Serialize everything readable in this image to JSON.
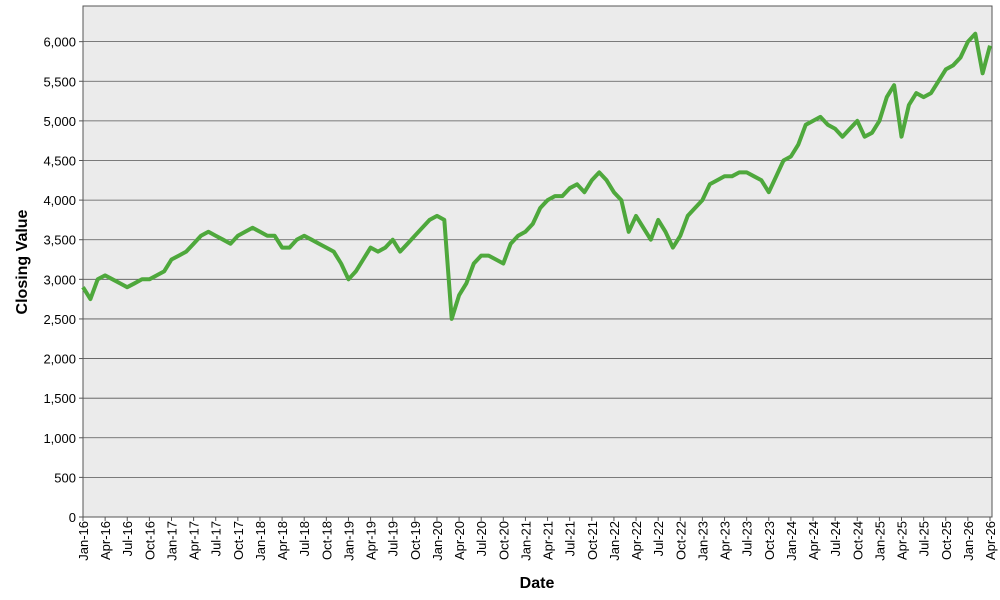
{
  "chart_data": {
    "type": "line",
    "x_label": "Date",
    "y_label": "Closing Value",
    "categories": [
      "Jan-16",
      null,
      null,
      "Apr-16",
      null,
      null,
      "Jul-16",
      null,
      null,
      "Oct-16",
      null,
      null,
      "Jan-17",
      null,
      null,
      "Apr-17",
      null,
      null,
      "Jul-17",
      null,
      null,
      "Oct-17",
      null,
      null,
      "Jan-18",
      null,
      null,
      "Apr-18",
      null,
      null,
      "Jul-18",
      null,
      null,
      "Oct-18",
      null,
      null,
      "Jan-19",
      null,
      null,
      "Apr-19",
      null,
      null,
      "Jul-19",
      null,
      null,
      "Oct-19",
      null,
      null,
      "Jan-20",
      null,
      null,
      "Apr-20",
      null,
      null,
      "Jul-20",
      null,
      null,
      "Oct-20",
      null,
      null,
      "Jan-21",
      null,
      null,
      "Apr-21",
      null,
      null,
      "Jul-21",
      null,
      null,
      "Oct-21",
      null,
      null,
      "Jan-22",
      null,
      null,
      "Apr-22",
      null,
      null,
      "Jul-22",
      null,
      null,
      "Oct-22",
      null,
      null,
      "Jan-23",
      null,
      null,
      "Apr-23",
      null,
      null,
      "Jul-23",
      null,
      null,
      "Oct-23",
      null,
      null,
      "Jan-24",
      null,
      null,
      "Apr-24",
      null,
      null,
      "Jul-24",
      null,
      null,
      "Oct-24",
      null,
      null,
      "Jan-25",
      null,
      null,
      "Apr-25",
      null,
      null,
      "Jul-25",
      null,
      null,
      "Oct-25",
      null,
      null,
      "Jan-26",
      null,
      null,
      "Apr-26"
    ],
    "series": [
      {
        "color": "#4ea83c",
        "values": [
          2900,
          2750,
          3000,
          3050,
          3000,
          2950,
          2900,
          2950,
          3000,
          3000,
          3050,
          3100,
          3250,
          3300,
          3350,
          3450,
          3550,
          3600,
          3550,
          3500,
          3450,
          3550,
          3600,
          3650,
          3600,
          3550,
          3550,
          3400,
          3400,
          3500,
          3550,
          3500,
          3450,
          3400,
          3350,
          3200,
          3000,
          3100,
          3250,
          3400,
          3350,
          3400,
          3500,
          3350,
          3450,
          3550,
          3650,
          3750,
          3800,
          3750,
          2500,
          2800,
          2950,
          3200,
          3300,
          3300,
          3250,
          3200,
          3450,
          3550,
          3600,
          3700,
          3900,
          4000,
          4050,
          4050,
          4150,
          4200,
          4100,
          4250,
          4350,
          4250,
          4100,
          4000,
          3600,
          3800,
          3650,
          3500,
          3750,
          3600,
          3400,
          3550,
          3800,
          3900,
          4000,
          4200,
          4250,
          4300,
          4300,
          4350,
          4350,
          4300,
          4250,
          4100,
          4300,
          4500,
          4550,
          4700,
          4950,
          5000,
          5050,
          4950,
          4900,
          4800,
          4900,
          5000,
          4800,
          4850,
          5000,
          5300,
          5450,
          4800,
          5200,
          5350,
          5300,
          5350,
          5500,
          5650,
          5700,
          5800,
          6000,
          6100,
          5600,
          5950
        ]
      }
    ],
    "ylim": [
      0,
      6450
    ],
    "yticks": [
      0,
      500,
      {
        "value": 1000,
        "label": "1,000"
      },
      {
        "value": 1500,
        "label": "1,500"
      },
      {
        "value": 2000,
        "label": "2,000"
      },
      {
        "value": 2500,
        "label": "2,500"
      },
      {
        "value": 3000,
        "label": "3,000"
      },
      {
        "value": 3500,
        "label": "3,500"
      },
      {
        "value": 4000,
        "label": "4,000"
      },
      {
        "value": 4500,
        "label": "4,500"
      },
      {
        "value": 5000,
        "label": "5,000"
      },
      {
        "value": 5500,
        "label": "5,500"
      },
      {
        "value": 6000,
        "label": "6,000"
      }
    ],
    "grid": true
  }
}
